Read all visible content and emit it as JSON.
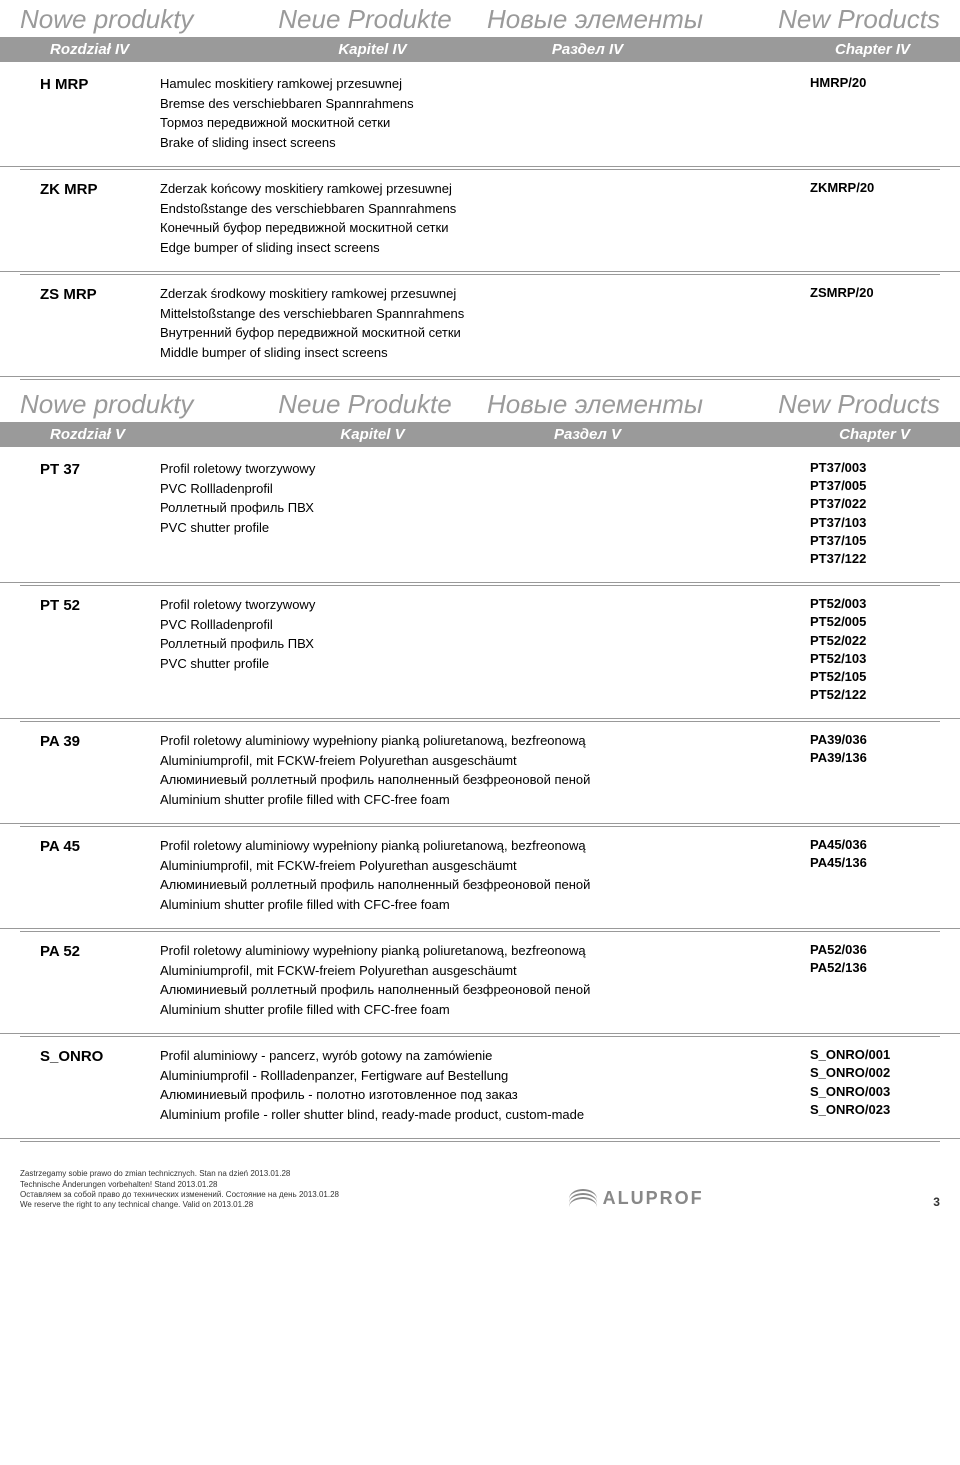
{
  "header1": {
    "titles": [
      "Nowe produkty",
      "Neue Produkte",
      "Новые элементы",
      "New Products"
    ],
    "chapters": [
      "Rozdział IV",
      "Kapitel IV",
      "Раздел IV",
      "Chapter IV"
    ]
  },
  "section1": [
    {
      "code": "H MRP",
      "lines": [
        "Hamulec moskitiery ramkowej przesuwnej",
        "Bremse des verschiebbaren Spannrahmens",
        "Тормоз передвижной москитной сетки",
        "Brake of sliding insect screens"
      ],
      "refs": [
        "HMRP/20"
      ]
    },
    {
      "code": "ZK MRP",
      "lines": [
        "Zderzak końcowy moskitiery ramkowej przesuwnej",
        "Endstoßstange des verschiebbaren Spannrahmens",
        "Конечный буфор передвижной москитной сетки",
        "Edge bumper of sliding insect screens"
      ],
      "refs": [
        "ZKMRP/20"
      ]
    },
    {
      "code": "ZS MRP",
      "lines": [
        "Zderzak środkowy moskitiery ramkowej przesuwnej",
        "Mittelstoßstange des verschiebbaren Spannrahmens",
        "Внутренний  буфор передвижной москитной сетки",
        "Middle bumper of sliding insect screens"
      ],
      "refs": [
        "ZSMRP/20"
      ]
    }
  ],
  "header2": {
    "titles": [
      "Nowe produkty",
      "Neue Produkte",
      "Новые элементы",
      "New Products"
    ],
    "chapters": [
      "Rozdział V",
      "Kapitel V",
      "Раздел V",
      "Chapter V"
    ]
  },
  "section2": [
    {
      "code": "PT 37",
      "lines": [
        "Profil roletowy tworzywowy",
        "PVC Rollladenprofil",
        "Роллетный профиль ПВХ",
        "PVC shutter profile"
      ],
      "refs": [
        "PT37/003",
        "PT37/005",
        "PT37/022",
        "PT37/103",
        "PT37/105",
        "PT37/122"
      ]
    },
    {
      "code": "PT 52",
      "lines": [
        "Profil roletowy tworzywowy",
        "PVC Rollladenprofil",
        "Роллетный профиль ПВХ",
        "PVC  shutter profile"
      ],
      "refs": [
        "PT52/003",
        "PT52/005",
        "PT52/022",
        "PT52/103",
        "PT52/105",
        "PT52/122"
      ]
    },
    {
      "code": "PA 39",
      "lines": [
        "Profil roletowy aluminiowy wypełniony pianką poliuretanową, bezfreonową",
        "Aluminiumprofil, mit FCKW-freiem Polyurethan ausgeschäumt",
        "Алюминиевый роллетный профиль наполненный безфреоновой пеной",
        "Aluminium shutter profile filled with CFC-free foam"
      ],
      "refs": [
        "PA39/036",
        "PA39/136"
      ]
    },
    {
      "code": "PA 45",
      "lines": [
        "Profil roletowy aluminiowy wypełniony pianką poliuretanową, bezfreonową",
        "Aluminiumprofil, mit FCKW-freiem Polyurethan ausgeschäumt",
        "Алюминиевый роллетный профиль наполненный безфреоновой пеной",
        "Aluminium shutter profile filled with CFC-free foam"
      ],
      "refs": [
        "PA45/036",
        "PA45/136"
      ]
    },
    {
      "code": "PA 52",
      "lines": [
        "Profil roletowy aluminiowy wypełniony pianką poliuretanową, bezfreonową",
        "Aluminiumprofil, mit FCKW-freiem Polyurethan ausgeschäumt",
        "Алюминиевый роллетный профиль наполненный безфреоновой пеной",
        "Aluminium shutter profile filled with CFC-free foam"
      ],
      "refs": [
        "PA52/036",
        "PA52/136"
      ]
    },
    {
      "code": "S_ONRO",
      "lines": [
        "Profil aluminiowy - pancerz, wyrób gotowy na zamówienie",
        "Aluminiumprofil - Rollladenpanzer, Fertigware auf Bestellung",
        "Алюминиевый профиль - полотно изготовленное под заказ",
        "Aluminium profile - roller shutter blind, ready-made product, custom-made"
      ],
      "refs": [
        "S_ONRO/001",
        "S_ONRO/002",
        "S_ONRO/003",
        "S_ONRO/023"
      ]
    }
  ],
  "footer": {
    "lines": [
      "Zastrzegamy sobie prawo do zmian technicznych. Stan na dzień 2013.01.28",
      "Technische Änderungen vorbehalten! Stand 2013.01.28",
      "Оставляем за собой право до технических изменений. Состояние на день 2013.01.28",
      "We reserve the right to any technical change. Valid on 2013.01.28"
    ],
    "brand": "ALUPROF",
    "page": "3"
  }
}
